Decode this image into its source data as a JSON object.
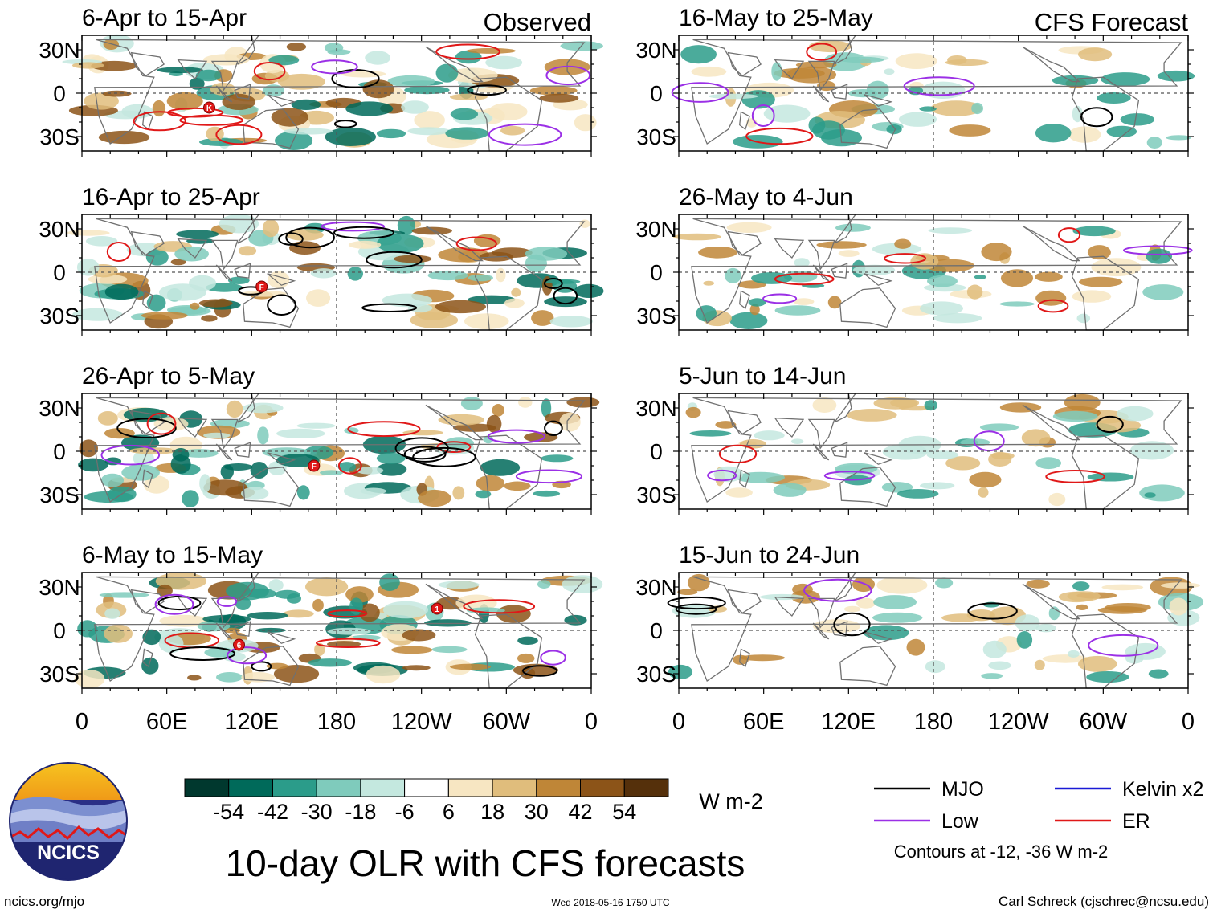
{
  "chart_data": {
    "type": "heatmap",
    "title": "10-day OLR with CFS forecasts",
    "column_labels": [
      "Observed",
      "CFS Forecast"
    ],
    "panels": [
      {
        "title": "6-Apr to 15-Apr",
        "column": "Observed",
        "storm_markers": [
          "K"
        ]
      },
      {
        "title": "16-Apr to 25-Apr",
        "column": "Observed",
        "storm_markers": [
          "F"
        ]
      },
      {
        "title": "26-Apr to 5-May",
        "column": "Observed",
        "storm_markers": [
          "F"
        ]
      },
      {
        "title": "6-May to 15-May",
        "column": "Observed",
        "storm_markers": [
          "6",
          "1"
        ]
      },
      {
        "title": "16-May to 25-May",
        "column": "CFS Forecast",
        "storm_markers": []
      },
      {
        "title": "26-May to 4-Jun",
        "column": "CFS Forecast",
        "storm_markers": []
      },
      {
        "title": "5-Jun to 14-Jun",
        "column": "CFS Forecast",
        "storm_markers": []
      },
      {
        "title": "15-Jun to 24-Jun",
        "column": "CFS Forecast",
        "storm_markers": []
      }
    ],
    "x_ticks": [
      "0",
      "60E",
      "120E",
      "180",
      "120W",
      "60W",
      "0"
    ],
    "y_ticks": [
      "30N",
      "0",
      "30S"
    ],
    "ylim": [
      -40,
      40
    ],
    "colorbar": {
      "ticks": [
        "-54",
        "-42",
        "-30",
        "-18",
        "-6",
        "6",
        "18",
        "30",
        "42",
        "54"
      ],
      "units": "W m-2",
      "colors": [
        "#00382e",
        "#006a5a",
        "#2b9c8a",
        "#7fcbbc",
        "#c4e8df",
        "#ffffff",
        "#f7e6c2",
        "#e0bd7c",
        "#bf8637",
        "#8c5418",
        "#55300b"
      ]
    },
    "legend": [
      {
        "label": "MJO",
        "color": "#000000"
      },
      {
        "label": "Kelvin x2",
        "color": "#1a1ad6"
      },
      {
        "label": "Low",
        "color": "#9b30e6"
      },
      {
        "label": "ER",
        "color": "#e01818"
      }
    ],
    "contour_note": "Contours at -12, -36 W m-2"
  },
  "logo": {
    "text": "NCICS"
  },
  "footer": {
    "url": "ncics.org/mjo",
    "timestamp": "Wed 2018-05-16 1750 UTC",
    "author": "Carl Schreck (cjschrec@ncsu.edu)"
  }
}
